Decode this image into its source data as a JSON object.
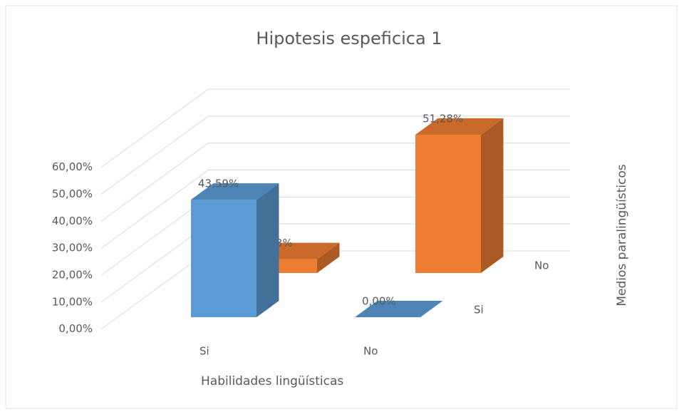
{
  "chart_data": {
    "type": "bar3d",
    "title": "Hipotesis espeficica 1",
    "x_label": "Habilidades lingüísticas",
    "depth_label": "Medios paralingüísticos",
    "categories": [
      "Si",
      "No"
    ],
    "series": [
      {
        "name": "Si",
        "color": "#5b9bd5",
        "values": [
          43.59,
          0.0
        ],
        "value_labels": [
          "43,59%",
          "0,00%"
        ]
      },
      {
        "name": "No",
        "color": "#ed7d31",
        "values": [
          5.13,
          51.28
        ],
        "value_labels": [
          "5,13%",
          "51,28%"
        ]
      }
    ],
    "ylim": [
      0,
      60
    ],
    "yticks": [
      {
        "value": 0,
        "label": "0,00%"
      },
      {
        "value": 10,
        "label": "10,00%"
      },
      {
        "value": 20,
        "label": "20,00%"
      },
      {
        "value": 30,
        "label": "30,00%"
      },
      {
        "value": 40,
        "label": "40,00%"
      },
      {
        "value": 50,
        "label": "50,00%"
      },
      {
        "value": 60,
        "label": "60,00%"
      }
    ],
    "grid": true
  }
}
